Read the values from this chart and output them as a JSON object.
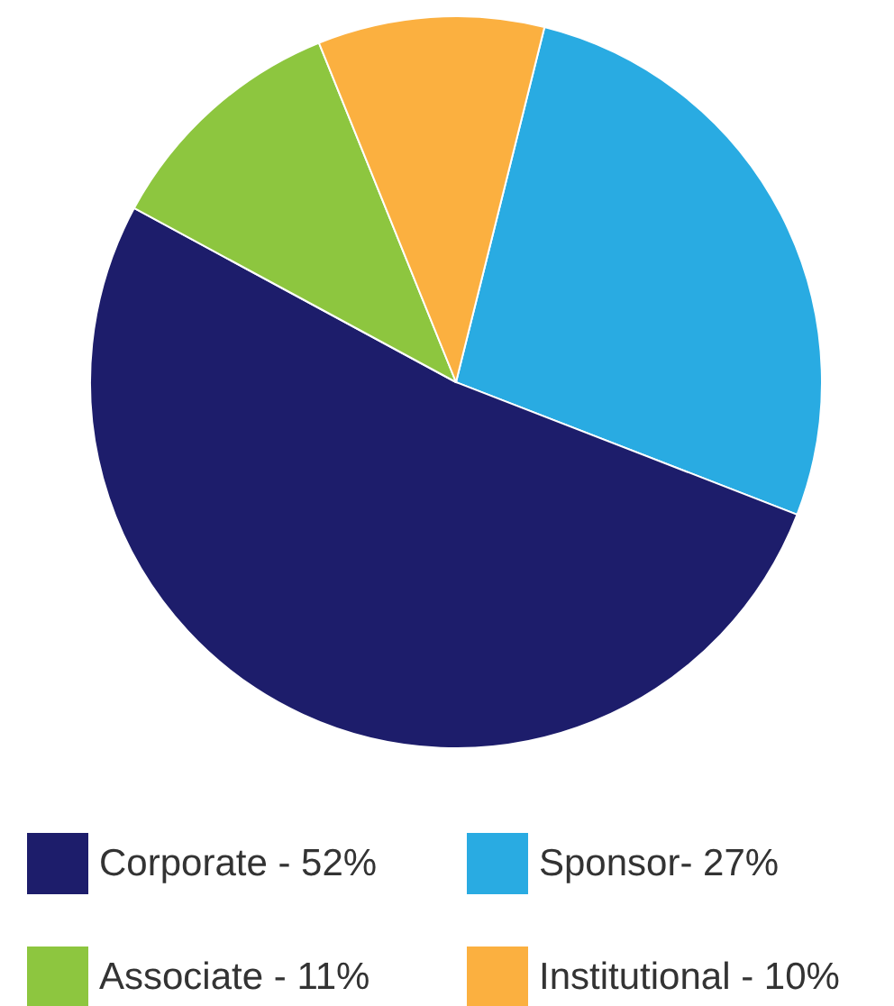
{
  "chart_data": {
    "type": "pie",
    "categories": [
      "Sponsor- 27%",
      "Corporate - 52%",
      "Associate - 11%",
      "Institutional - 10%"
    ],
    "values": [
      27,
      52,
      11,
      10
    ],
    "colors": [
      "#29abe2",
      "#1d1d6b",
      "#8dc63f",
      "#fbb040"
    ],
    "legend": "bottom"
  }
}
